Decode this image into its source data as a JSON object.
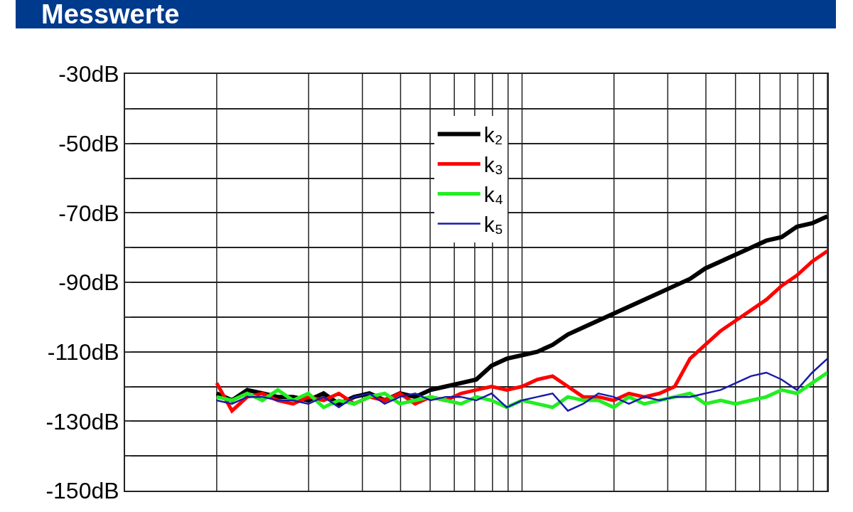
{
  "chart_data": {
    "type": "line",
    "title": "Messwerte",
    "legend": "top",
    "grid": true,
    "line_style": "solid",
    "marker": "none",
    "tick_labels": "y",
    "categories": [
      null,
      null,
      null,
      null,
      null,
      null,
      null,
      null,
      null,
      null,
      null,
      null,
      null,
      null,
      null,
      null,
      null,
      null,
      null,
      null,
      null,
      null,
      null,
      null,
      null,
      null,
      null,
      null,
      null,
      null,
      null,
      null,
      null,
      null,
      null,
      null,
      null,
      null,
      null,
      null,
      null,
      null,
      null,
      null,
      null,
      null,
      null
    ],
    "ylim": [
      -150,
      -30
    ],
    "yticks": [
      {
        "value": -150,
        "label": "-150dB"
      },
      {
        "value": -140,
        "label": null
      },
      {
        "value": -130,
        "label": "-130dB"
      },
      {
        "value": -120,
        "label": null
      },
      {
        "value": -110,
        "label": "-110dB"
      },
      {
        "value": -100,
        "label": null
      },
      {
        "value": -90,
        "label": "-90dB"
      },
      {
        "value": -80,
        "label": null
      },
      {
        "value": -70,
        "label": "-70dB"
      },
      {
        "value": -60,
        "label": null
      },
      {
        "value": -50,
        "label": "-50dB"
      },
      {
        "value": -40,
        "label": null
      },
      {
        "value": -30,
        "label": "-30dB"
      }
    ],
    "series": [
      {
        "name": "k₂",
        "color": "#000000",
        "values": [
          null,
          null,
          null,
          null,
          null,
          null,
          -122,
          -124,
          -121,
          -122,
          -123,
          -123,
          -124,
          -122,
          -125,
          -123,
          -122,
          -124,
          -122,
          -123,
          -121,
          -120,
          -119,
          -118,
          -114,
          -112,
          -111,
          -110,
          -108,
          -105,
          -103,
          -101,
          -99,
          -97,
          -95,
          -93,
          -91,
          -89,
          -86,
          -84,
          -82,
          -80,
          -78,
          -77,
          -74,
          -73,
          -71
        ]
      },
      {
        "name": "k₃",
        "color": "#ff0000",
        "values": [
          null,
          null,
          null,
          null,
          null,
          null,
          -119,
          -127,
          -123,
          -122,
          -124,
          -125,
          -123,
          -124,
          -122,
          -125,
          -123,
          -124,
          -122,
          -125,
          -123,
          -124,
          -122,
          -121,
          -120,
          -121,
          -120,
          -118,
          -117,
          -120,
          -123,
          -123,
          -124,
          -122,
          -123,
          -122,
          -120,
          -112,
          -108,
          -104,
          -101,
          -98,
          -95,
          -91,
          -88,
          -84,
          -81
        ]
      },
      {
        "name": "k₄",
        "color": "#22ee22",
        "values": [
          null,
          null,
          null,
          null,
          null,
          null,
          -123,
          -124,
          -122,
          -124,
          -121,
          -124,
          -122,
          -126,
          -124,
          -125,
          -123,
          -122,
          -125,
          -124,
          -123,
          -124,
          -125,
          -123,
          -124,
          -126,
          -124,
          -125,
          -126,
          -123,
          -124,
          -124,
          -126,
          -123,
          -125,
          -124,
          -123,
          -122,
          -125,
          -124,
          -125,
          -124,
          -123,
          -121,
          -122,
          -119,
          -116
        ]
      },
      {
        "name": "k₅",
        "color": "#1a1aaa",
        "values": [
          null,
          null,
          null,
          null,
          null,
          null,
          -124,
          -125,
          -123,
          -123,
          -124,
          -124,
          -125,
          -123,
          -126,
          -123,
          -122,
          -125,
          -123,
          -122,
          -124,
          -123,
          -123,
          -124,
          -122,
          -126,
          -124,
          -123,
          -122,
          -127,
          -125,
          -122,
          -123,
          -125,
          -123,
          -124,
          -123,
          -123,
          -122,
          -121,
          -119,
          -117,
          -116,
          -118,
          -121,
          -116,
          -112
        ]
      }
    ]
  }
}
